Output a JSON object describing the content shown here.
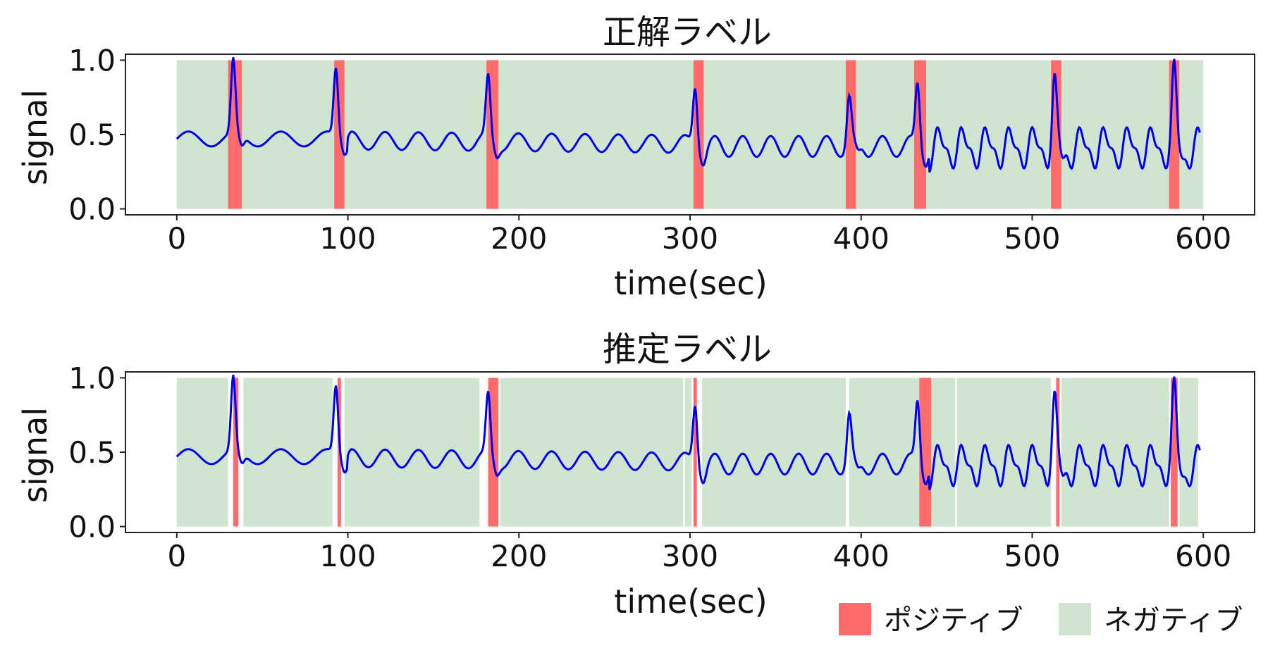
{
  "colors": {
    "positive": "#ff6b6b",
    "negative": "#cfe5cf",
    "signal": "#0000ee",
    "axes": "#222222"
  },
  "legend": {
    "positive_label": "ポジティブ",
    "negative_label": "ネガティブ",
    "placement": "lower-right"
  },
  "chart_data": [
    {
      "type": "line",
      "title": "正解ラベル",
      "xlabel": "time(sec)",
      "ylabel": "signal",
      "xlim": [
        -30,
        630
      ],
      "ylim": [
        -0.04,
        1.04
      ],
      "xticks": [
        0,
        100,
        200,
        300,
        400,
        500,
        600
      ],
      "yticks": [
        0.0,
        0.5,
        1.0
      ],
      "ytick_labels": [
        "0.0",
        "0.5",
        "1.0"
      ],
      "grid": false,
      "signal_peaks": [
        {
          "t": 33,
          "h": 0.97
        },
        {
          "t": 93,
          "h": 0.93
        },
        {
          "t": 182,
          "h": 0.88
        },
        {
          "t": 303,
          "h": 0.88
        },
        {
          "t": 393,
          "h": 0.79
        },
        {
          "t": 433,
          "h": 0.9
        },
        {
          "t": 513,
          "h": 0.85
        },
        {
          "t": 583,
          "h": 0.93
        }
      ],
      "negative_spans": [
        [
          0,
          600
        ]
      ],
      "positive_spans": [
        [
          30,
          38
        ],
        [
          92,
          98
        ],
        [
          181,
          188
        ],
        [
          302,
          308
        ],
        [
          391,
          397
        ],
        [
          431,
          438
        ],
        [
          511,
          517
        ],
        [
          580,
          586
        ]
      ]
    },
    {
      "type": "line",
      "title": "推定ラベル",
      "xlabel": "time(sec)",
      "ylabel": "signal",
      "xlim": [
        -30,
        630
      ],
      "ylim": [
        -0.04,
        1.04
      ],
      "xticks": [
        0,
        100,
        200,
        300,
        400,
        500,
        600
      ],
      "yticks": [
        0.0,
        0.5,
        1.0
      ],
      "ytick_labels": [
        "0.0",
        "0.5",
        "1.0"
      ],
      "grid": false,
      "signal_peaks": [
        {
          "t": 33,
          "h": 0.97
        },
        {
          "t": 93,
          "h": 0.93
        },
        {
          "t": 182,
          "h": 0.88
        },
        {
          "t": 303,
          "h": 0.88
        },
        {
          "t": 393,
          "h": 0.79
        },
        {
          "t": 433,
          "h": 0.9
        },
        {
          "t": 513,
          "h": 0.85
        },
        {
          "t": 583,
          "h": 0.93
        }
      ],
      "negative_spans": [
        [
          0,
          30
        ],
        [
          39,
          91
        ],
        [
          98,
          177
        ],
        [
          189,
          296
        ],
        [
          297,
          301
        ],
        [
          307,
          391
        ],
        [
          393,
          434
        ],
        [
          441,
          455
        ],
        [
          456,
          511
        ],
        [
          517,
          580
        ],
        [
          586,
          597
        ]
      ],
      "positive_spans": [
        [
          33,
          36
        ],
        [
          94,
          96
        ],
        [
          182,
          188
        ],
        [
          302,
          304
        ],
        [
          434,
          441
        ],
        [
          514,
          516
        ],
        [
          581,
          585
        ]
      ]
    }
  ]
}
